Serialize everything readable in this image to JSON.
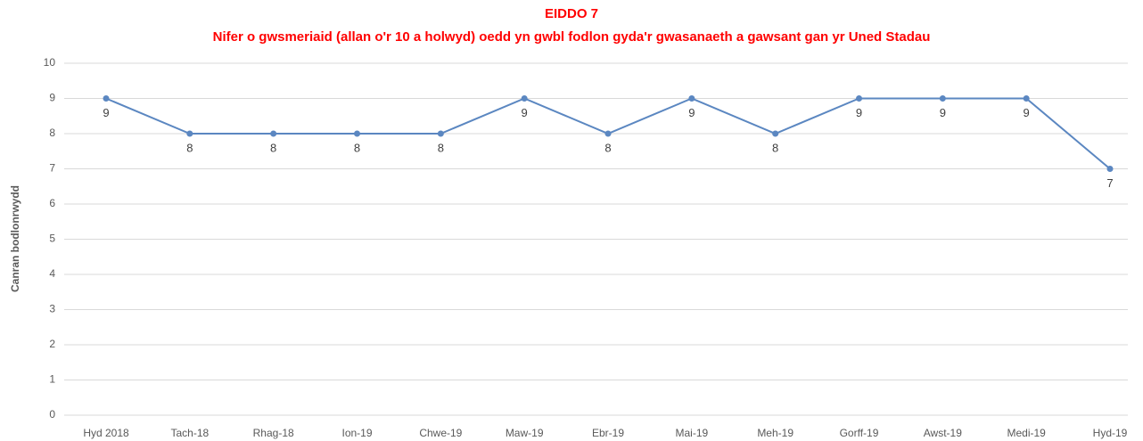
{
  "chart_data": {
    "type": "line",
    "title": "EIDDO 7",
    "subtitle": "Nifer o gwsmeriaid (allan o'r 10 a holwyd) oedd yn gwbl fodlon gyda'r gwasanaeth a gawsant gan yr Uned Stadau",
    "y_label": "Canran bodlonrwydd",
    "categories": [
      "Hyd 2018",
      "Tach-18",
      "Rhag-18",
      "Ion-19",
      "Chwe-19",
      "Maw-19",
      "Ebr-19",
      "Mai-19",
      "Meh-19",
      "Gorff-19",
      "Awst-19",
      "Medi-19",
      "Hyd-19"
    ],
    "series": [
      {
        "name": "Canran bodlonrwydd",
        "color": "#5b87c1",
        "values": [
          9,
          8,
          8,
          8,
          8,
          9,
          8,
          9,
          8,
          9,
          9,
          9,
          7
        ]
      }
    ],
    "ylim": [
      0,
      10
    ],
    "yticks": [
      0,
      1,
      2,
      3,
      4,
      5,
      6,
      7,
      8,
      9,
      10
    ],
    "grid": true,
    "data_labels": true
  }
}
